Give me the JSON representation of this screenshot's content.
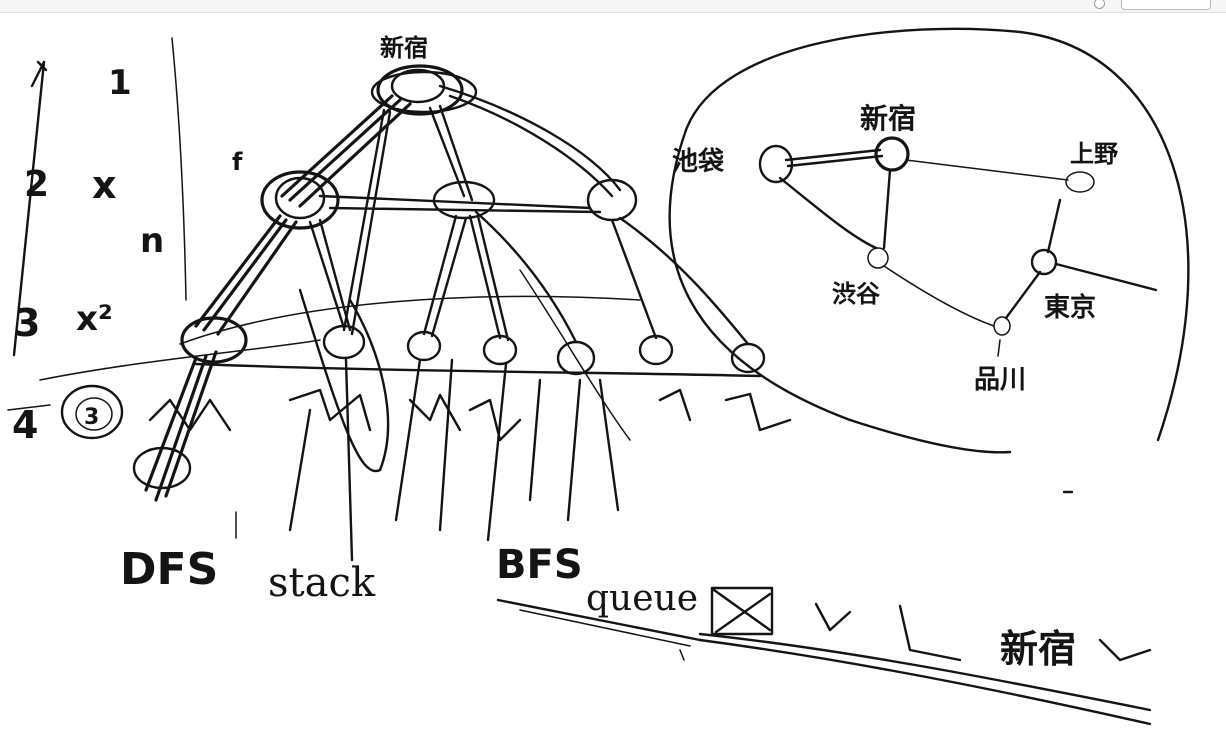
{
  "whiteboard": {
    "top_nodes": [
      "新宿",
      "x",
      "x²"
    ],
    "labels": {
      "dfs": "DFS",
      "stack": "stack",
      "bfs": "BFS",
      "queue": "queue",
      "level_numbers": [
        "1",
        "2",
        "3",
        "4"
      ],
      "level_vars": [
        "1",
        "x",
        "n",
        "x²"
      ],
      "node_3": "3",
      "f": "f"
    },
    "graph_nodes": {
      "root": "新宿",
      "right_panel": [
        "新宿",
        "品川",
        "東京",
        "渋谷",
        "上野",
        "池袋"
      ]
    },
    "stroke_color": "#141414"
  }
}
